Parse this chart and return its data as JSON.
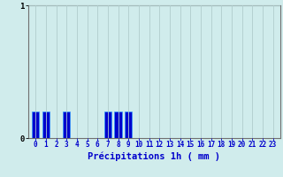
{
  "hours": [
    0,
    1,
    2,
    3,
    4,
    5,
    6,
    7,
    8,
    9,
    10,
    11,
    12,
    13,
    14,
    15,
    16,
    17,
    18,
    19,
    20,
    21,
    22,
    23
  ],
  "values": [
    0.2,
    0.2,
    0.0,
    0.2,
    0.0,
    0.0,
    0.0,
    0.2,
    0.2,
    0.2,
    0.0,
    0.0,
    0.0,
    0.0,
    0.0,
    0.0,
    0.0,
    0.0,
    0.0,
    0.0,
    0.0,
    0.0,
    0.0,
    0.0
  ],
  "bar_color": "#0000cc",
  "bar_edge_color": "#3399ff",
  "background_color": "#d0ecec",
  "grid_color": "#b0cccc",
  "axis_color": "#707070",
  "xlabel": "Précipitations 1h ( mm )",
  "xlabel_color": "#0000cc",
  "ylabel_color": "#000000",
  "ylim": [
    0,
    1
  ],
  "yticks": [
    0,
    1
  ],
  "ytick_labels": [
    "0",
    "1"
  ],
  "tick_fontsize": 5.5,
  "label_fontsize": 7.5
}
